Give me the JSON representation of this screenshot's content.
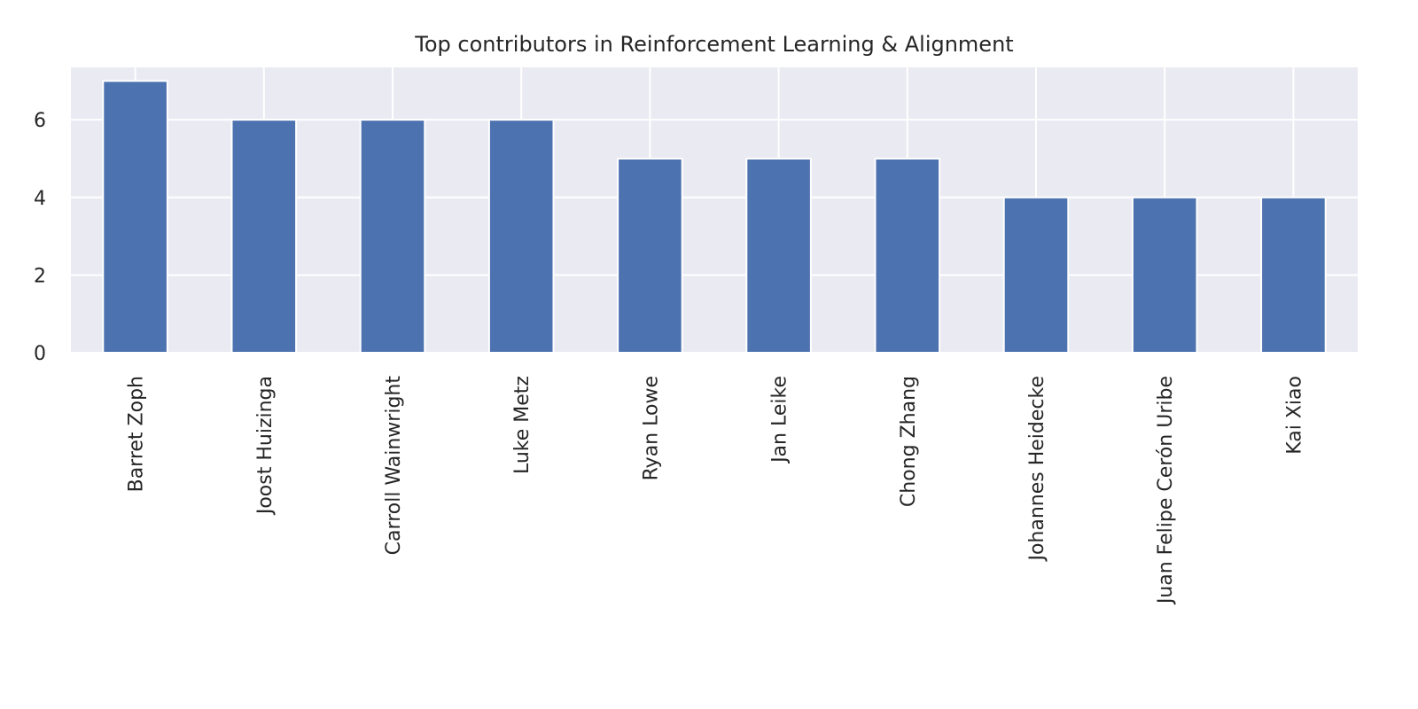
{
  "chart_data": {
    "type": "bar",
    "title": "Top contributors in Reinforcement Learning & Alignment",
    "xlabel": "",
    "ylabel": "",
    "categories": [
      "Barret Zoph",
      "Joost Huizinga",
      "Carroll Wainwright",
      "Luke Metz",
      "Ryan Lowe",
      "Jan Leike",
      "Chong Zhang",
      "Johannes Heidecke",
      "Juan Felipe Cerón Uribe",
      "Kai Xiao"
    ],
    "values": [
      7,
      6,
      6,
      6,
      5,
      5,
      5,
      4,
      4,
      4
    ],
    "ylim": [
      0,
      7.35
    ],
    "yticks": [
      0,
      2,
      4,
      6
    ],
    "ytick_labels": [
      "0",
      "2",
      "4",
      "6"
    ],
    "grid": true,
    "legend": "none",
    "colors": {
      "bar": "#4c72b0",
      "plot_background": "#eaeaf2",
      "grid": "#ffffff",
      "text": "#262626"
    }
  }
}
